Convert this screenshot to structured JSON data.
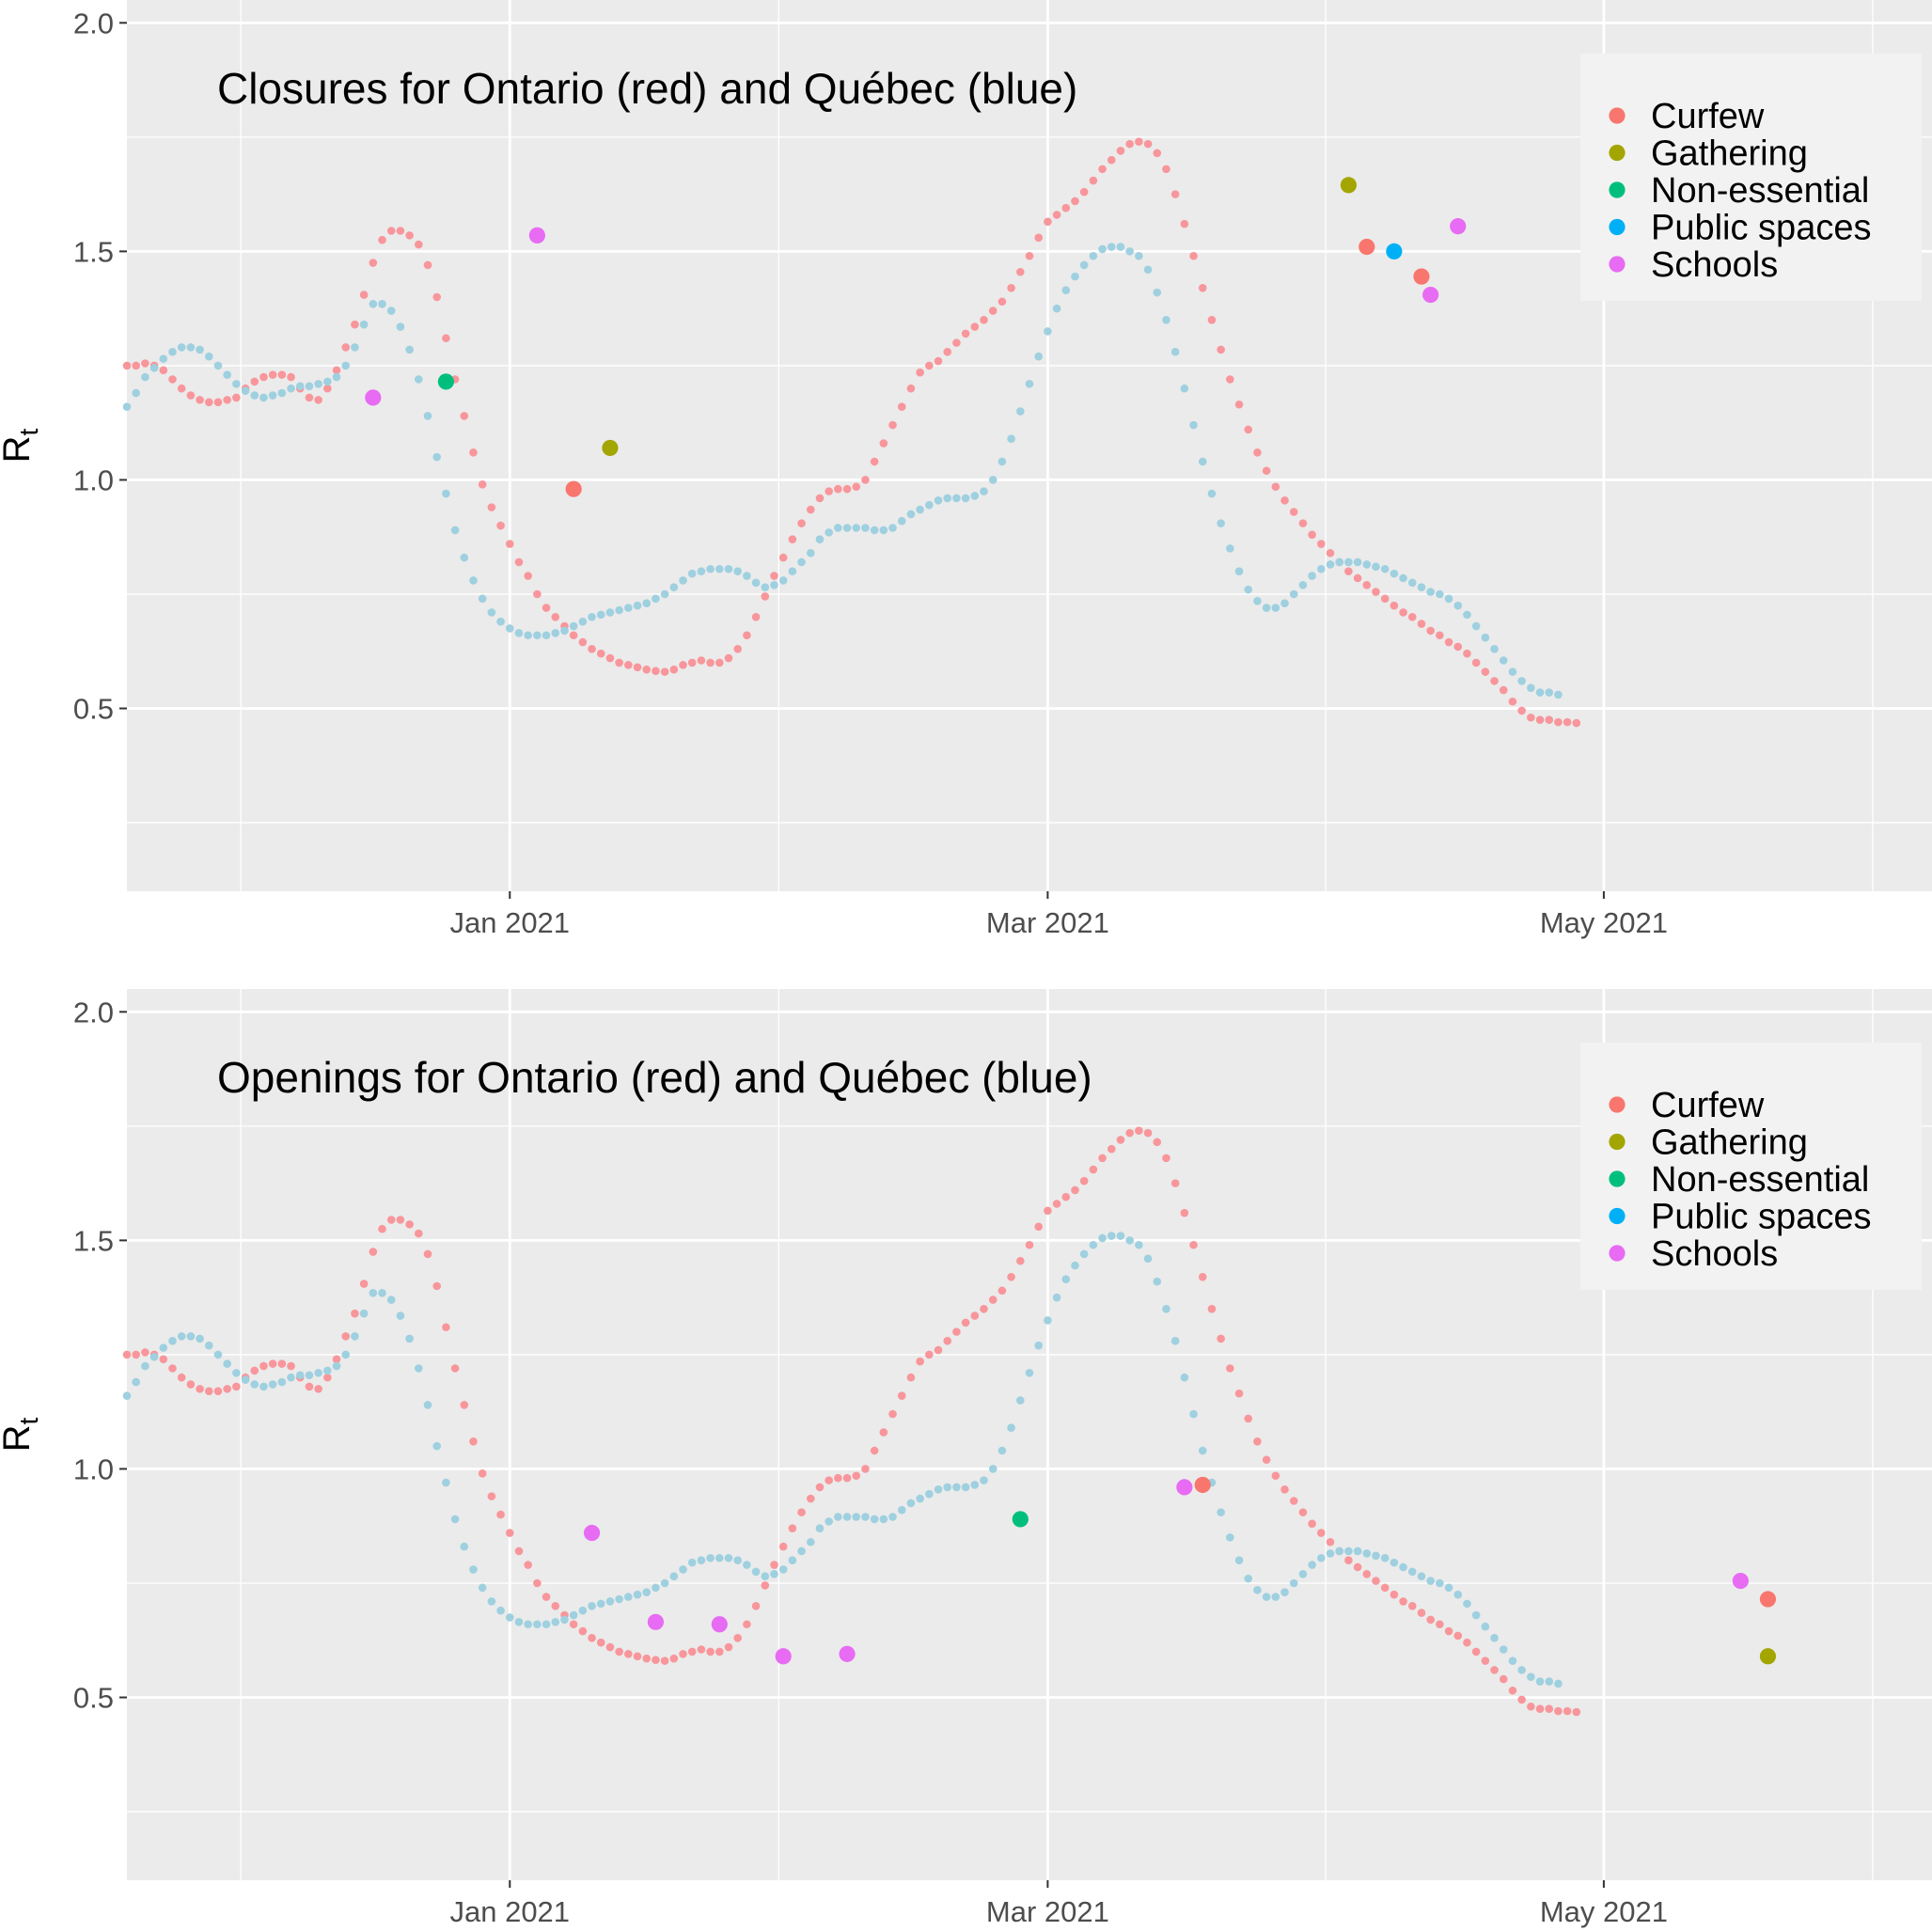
{
  "chart_data": [
    {
      "type": "scatter",
      "title": "Closures for Ontario (red) and Québec (blue)",
      "ylabel_main": "R",
      "ylabel_sub": "t",
      "xlabel": "",
      "ylim": [
        0.1,
        2.05
      ],
      "xlim": [
        "2020-11-20",
        "2021-06-06"
      ],
      "x_ticks": [
        "2021-01-01",
        "2021-03-01",
        "2021-05-01"
      ],
      "x_tick_labels": [
        "Jan 2021",
        "Mar 2021",
        "May 2021"
      ],
      "y_ticks": [
        0.5,
        1.0,
        1.5,
        2.0
      ],
      "y_tick_labels": [
        "0.5",
        "1.0",
        "1.5",
        "2.0"
      ],
      "grid": true,
      "legend_position": "top-right",
      "series": [
        {
          "role": "ontario",
          "color": "#F8969B"
        },
        {
          "role": "quebec",
          "color": "#9ED0E0"
        }
      ],
      "events": [
        {
          "date": "2020-12-17",
          "y": 1.18,
          "category": "Schools"
        },
        {
          "date": "2020-12-25",
          "y": 1.215,
          "category": "Non-essential"
        },
        {
          "date": "2021-01-04",
          "y": 1.535,
          "category": "Schools"
        },
        {
          "date": "2021-01-08",
          "y": 0.98,
          "category": "Curfew"
        },
        {
          "date": "2021-01-12",
          "y": 1.07,
          "category": "Gathering"
        },
        {
          "date": "2021-04-03",
          "y": 1.645,
          "category": "Gathering"
        },
        {
          "date": "2021-04-05",
          "y": 1.51,
          "category": "Curfew"
        },
        {
          "date": "2021-04-08",
          "y": 1.5,
          "category": "Public spaces"
        },
        {
          "date": "2021-04-11",
          "y": 1.445,
          "category": "Curfew"
        },
        {
          "date": "2021-04-12",
          "y": 1.405,
          "category": "Schools"
        },
        {
          "date": "2021-04-15",
          "y": 1.555,
          "category": "Schools"
        }
      ]
    },
    {
      "type": "scatter",
      "title": "Openings for Ontario (red) and Québec (blue)",
      "ylabel_main": "R",
      "ylabel_sub": "t",
      "xlabel": "",
      "ylim": [
        0.1,
        2.05
      ],
      "xlim": [
        "2020-11-20",
        "2021-06-06"
      ],
      "x_ticks": [
        "2021-01-01",
        "2021-03-01",
        "2021-05-01"
      ],
      "x_tick_labels": [
        "Jan 2021",
        "Mar 2021",
        "May 2021"
      ],
      "y_ticks": [
        0.5,
        1.0,
        1.5,
        2.0
      ],
      "y_tick_labels": [
        "0.5",
        "1.0",
        "1.5",
        "2.0"
      ],
      "grid": true,
      "legend_position": "top-right",
      "series": [
        {
          "role": "ontario",
          "color": "#F8969B"
        },
        {
          "role": "quebec",
          "color": "#9ED0E0"
        }
      ],
      "events": [
        {
          "date": "2021-01-10",
          "y": 0.86,
          "category": "Schools"
        },
        {
          "date": "2021-01-17",
          "y": 0.665,
          "category": "Schools"
        },
        {
          "date": "2021-01-24",
          "y": 0.66,
          "category": "Schools"
        },
        {
          "date": "2021-01-31",
          "y": 0.59,
          "category": "Schools"
        },
        {
          "date": "2021-02-07",
          "y": 0.595,
          "category": "Schools"
        },
        {
          "date": "2021-02-26",
          "y": 0.89,
          "category": "Non-essential"
        },
        {
          "date": "2021-03-16",
          "y": 0.96,
          "category": "Schools"
        },
        {
          "date": "2021-03-18",
          "y": 0.965,
          "category": "Curfew"
        },
        {
          "date": "2021-05-16",
          "y": 0.755,
          "category": "Schools"
        },
        {
          "date": "2021-05-19",
          "y": 0.715,
          "category": "Curfew"
        },
        {
          "date": "2021-05-19",
          "y": 0.59,
          "category": "Gathering"
        }
      ]
    }
  ],
  "curves": {
    "start_date": "2020-11-20",
    "ontario": {
      "color": "#F8969B",
      "values": [
        1.25,
        1.25,
        1.255,
        1.25,
        1.24,
        1.22,
        1.2,
        1.185,
        1.175,
        1.17,
        1.17,
        1.175,
        1.18,
        1.2,
        1.215,
        1.225,
        1.23,
        1.23,
        1.225,
        1.2,
        1.18,
        1.175,
        1.2,
        1.24,
        1.29,
        1.34,
        1.405,
        1.475,
        1.525,
        1.545,
        1.545,
        1.535,
        1.515,
        1.47,
        1.4,
        1.31,
        1.22,
        1.14,
        1.06,
        0.99,
        0.94,
        0.9,
        0.86,
        0.82,
        0.79,
        0.75,
        0.72,
        0.7,
        0.68,
        0.66,
        0.645,
        0.63,
        0.62,
        0.61,
        0.6,
        0.595,
        0.59,
        0.585,
        0.582,
        0.58,
        0.585,
        0.595,
        0.6,
        0.605,
        0.6,
        0.6,
        0.61,
        0.63,
        0.66,
        0.7,
        0.745,
        0.79,
        0.83,
        0.87,
        0.905,
        0.935,
        0.96,
        0.975,
        0.98,
        0.98,
        0.985,
        1.0,
        1.04,
        1.08,
        1.12,
        1.16,
        1.2,
        1.235,
        1.25,
        1.26,
        1.28,
        1.3,
        1.32,
        1.335,
        1.35,
        1.37,
        1.39,
        1.42,
        1.455,
        1.49,
        1.53,
        1.565,
        1.58,
        1.595,
        1.61,
        1.63,
        1.655,
        1.68,
        1.7,
        1.72,
        1.735,
        1.74,
        1.735,
        1.715,
        1.68,
        1.625,
        1.56,
        1.49,
        1.42,
        1.35,
        1.285,
        1.22,
        1.165,
        1.11,
        1.06,
        1.02,
        0.985,
        0.955,
        0.93,
        0.905,
        0.88,
        0.86,
        0.84,
        0.82,
        0.8,
        0.785,
        0.77,
        0.755,
        0.74,
        0.725,
        0.71,
        0.7,
        0.685,
        0.67,
        0.66,
        0.645,
        0.635,
        0.62,
        0.6,
        0.58,
        0.56,
        0.54,
        0.515,
        0.495,
        0.48,
        0.475,
        0.475,
        0.47,
        0.47,
        0.468
      ]
    },
    "quebec": {
      "color": "#9ED0E0",
      "values": [
        1.16,
        1.19,
        1.225,
        1.245,
        1.265,
        1.28,
        1.29,
        1.29,
        1.285,
        1.27,
        1.25,
        1.23,
        1.21,
        1.195,
        1.185,
        1.18,
        1.185,
        1.19,
        1.2,
        1.205,
        1.205,
        1.21,
        1.215,
        1.225,
        1.25,
        1.29,
        1.34,
        1.385,
        1.385,
        1.37,
        1.335,
        1.285,
        1.22,
        1.14,
        1.05,
        0.97,
        0.89,
        0.83,
        0.78,
        0.74,
        0.71,
        0.69,
        0.675,
        0.665,
        0.66,
        0.66,
        0.66,
        0.665,
        0.67,
        0.68,
        0.69,
        0.7,
        0.705,
        0.71,
        0.715,
        0.72,
        0.725,
        0.73,
        0.74,
        0.75,
        0.765,
        0.78,
        0.795,
        0.8,
        0.805,
        0.805,
        0.805,
        0.8,
        0.79,
        0.775,
        0.765,
        0.77,
        0.78,
        0.8,
        0.82,
        0.84,
        0.87,
        0.885,
        0.895,
        0.895,
        0.895,
        0.895,
        0.89,
        0.89,
        0.895,
        0.91,
        0.925,
        0.935,
        0.945,
        0.955,
        0.96,
        0.96,
        0.96,
        0.965,
        0.975,
        1.0,
        1.04,
        1.09,
        1.15,
        1.21,
        1.27,
        1.325,
        1.375,
        1.415,
        1.445,
        1.47,
        1.49,
        1.505,
        1.51,
        1.51,
        1.5,
        1.49,
        1.46,
        1.41,
        1.35,
        1.28,
        1.2,
        1.12,
        1.04,
        0.97,
        0.905,
        0.85,
        0.8,
        0.76,
        0.735,
        0.72,
        0.72,
        0.73,
        0.75,
        0.77,
        0.79,
        0.805,
        0.815,
        0.82,
        0.82,
        0.82,
        0.815,
        0.81,
        0.805,
        0.795,
        0.785,
        0.775,
        0.765,
        0.755,
        0.75,
        0.74,
        0.725,
        0.705,
        0.68,
        0.655,
        0.63,
        0.605,
        0.58,
        0.56,
        0.545,
        0.535,
        0.535,
        0.53
      ]
    }
  },
  "legend": {
    "items": [
      {
        "label": "Curfew",
        "color": "#F8766D"
      },
      {
        "label": "Gathering",
        "color": "#A3A500"
      },
      {
        "label": "Non-essential",
        "color": "#00BF7D"
      },
      {
        "label": "Public spaces",
        "color": "#00B0F6"
      },
      {
        "label": "Schools",
        "color": "#E76BF3"
      }
    ]
  },
  "colors": {
    "panel_background": "#EBEBEB",
    "grid_major": "#FFFFFF",
    "axis_text": "#4D4D4D"
  }
}
